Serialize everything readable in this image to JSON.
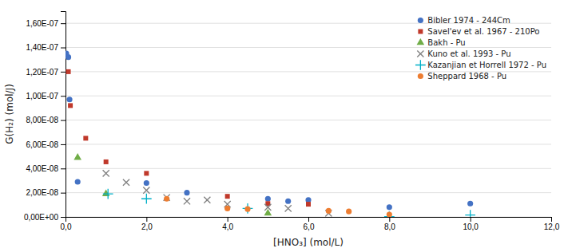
{
  "chart_data": {
    "type": "scatter",
    "xlabel": "[HNO₃] (mol/L)",
    "ylabel": "G(H₂) (mol/J)",
    "series": [
      {
        "name": "Bibler 1974 - 244Cm",
        "color": "#4472c4",
        "marker": "circle",
        "x": [
          0.02,
          0.07,
          0.1,
          0.3,
          2.0,
          3.0,
          5.0,
          5.5,
          6.0,
          8.0,
          10.0
        ],
        "values": [
          1.35e-07,
          1.32e-07,
          9.7e-08,
          2.9e-08,
          2.8e-08,
          2e-08,
          1.5e-08,
          1.3e-08,
          1.4e-08,
          8e-09,
          1.1e-08
        ]
      },
      {
        "name": "Savel'ev et al. 1967 - 210Po",
        "color": "#c0392b",
        "marker": "square",
        "x": [
          0.07,
          0.12,
          0.5,
          1.0,
          2.0,
          4.0,
          5.0,
          6.0
        ],
        "values": [
          1.2e-07,
          9.2e-08,
          6.5e-08,
          4.55e-08,
          3.6e-08,
          1.7e-08,
          1.1e-08,
          1.05e-08
        ]
      },
      {
        "name": "Bakh - Pu",
        "color": "#70ad47",
        "marker": "triangle",
        "x": [
          0.3,
          1.0,
          5.0
        ],
        "values": [
          4.9e-08,
          1.9e-08,
          3e-09
        ]
      },
      {
        "name": "Kuno et al. 1993 - Pu",
        "color": "#7f7f7f",
        "marker": "x",
        "x": [
          1.0,
          1.5,
          2.0,
          2.5,
          3.0,
          3.5,
          4.0,
          5.0,
          5.5,
          6.5
        ],
        "values": [
          3.6e-08,
          2.85e-08,
          2.2e-08,
          1.6e-08,
          1.3e-08,
          1.4e-08,
          1.05e-08,
          8e-09,
          7e-09,
          3e-09
        ]
      },
      {
        "name": "Kazanjian et Horrell 1972 - Pu",
        "color": "#00b0c8",
        "marker": "plus",
        "x": [
          1.05,
          2.0,
          4.5,
          8.0,
          10.0
        ],
        "values": [
          1.9e-08,
          1.5e-08,
          7e-09,
          2e-10,
          1.5e-09
        ]
      },
      {
        "name": "Sheppard 1968 - Pu",
        "color": "#ed7d31",
        "marker": "circle",
        "x": [
          2.5,
          4.0,
          4.5,
          6.5,
          7.0,
          8.0
        ],
        "values": [
          1.5e-08,
          7e-09,
          6.5e-09,
          5e-09,
          4.5e-09,
          2e-09
        ]
      }
    ],
    "xlim": [
      0,
      12
    ],
    "ylim": [
      0,
      1.7e-07
    ],
    "xticks": [
      {
        "value": 0,
        "label": "0,0"
      },
      {
        "value": 2,
        "label": "2,0"
      },
      {
        "value": 4,
        "label": "4,0"
      },
      {
        "value": 6,
        "label": "6,0"
      },
      {
        "value": 8,
        "label": "8,0"
      },
      {
        "value": 10,
        "label": "10,0"
      },
      {
        "value": 12,
        "label": "12,0"
      }
    ],
    "yticks": [
      {
        "value": 0,
        "label": "0,00E+00"
      },
      {
        "value": 2e-08,
        "label": "2,00E-08"
      },
      {
        "value": 4e-08,
        "label": "4,00E-08"
      },
      {
        "value": 6e-08,
        "label": "6,00E-08"
      },
      {
        "value": 8e-08,
        "label": "8,00E-08"
      },
      {
        "value": 1e-07,
        "label": "1,00E-07"
      },
      {
        "value": 1.2e-07,
        "label": "1,20E-07"
      },
      {
        "value": 1.4e-07,
        "label": "1,40E-07"
      },
      {
        "value": 1.6e-07,
        "label": "1,60E-07"
      }
    ],
    "grid": "y",
    "legend": "upper right"
  }
}
